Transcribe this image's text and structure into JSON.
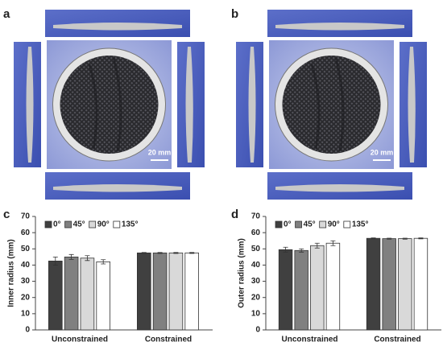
{
  "panels": [
    {
      "label": "a",
      "scale_bar": "20 mm"
    },
    {
      "label": "b",
      "scale_bar": "20 mm"
    }
  ],
  "chart_data": [
    {
      "type": "bar",
      "panel": "c",
      "ylabel": "Inner radius (mm)",
      "categories": [
        "Unconstrained",
        "Constrained"
      ],
      "ylim": [
        0,
        70
      ],
      "yticks": [
        0,
        10,
        20,
        30,
        40,
        50,
        60,
        70
      ],
      "legend": "top-left",
      "series": [
        {
          "name": "0°",
          "color": "#404040",
          "values": [
            42.5,
            47.5
          ],
          "errors": [
            2.5,
            0.3
          ]
        },
        {
          "name": "45°",
          "color": "#808080",
          "values": [
            45,
            47.5
          ],
          "errors": [
            1.5,
            0.3
          ]
        },
        {
          "name": "90°",
          "color": "#d9d9d9",
          "values": [
            44.3,
            47.5
          ],
          "errors": [
            1.5,
            0.3
          ]
        },
        {
          "name": "135°",
          "color": "#ffffff",
          "values": [
            42,
            47.5
          ],
          "errors": [
            1.3,
            0.3
          ]
        }
      ]
    },
    {
      "type": "bar",
      "panel": "d",
      "ylabel": "Outer radius (mm)",
      "categories": [
        "Unconstrained",
        "Constrained"
      ],
      "ylim": [
        0,
        70
      ],
      "yticks": [
        0,
        10,
        20,
        30,
        40,
        50,
        60,
        70
      ],
      "legend": "top-left",
      "series": [
        {
          "name": "0°",
          "color": "#404040",
          "values": [
            49.5,
            56.5
          ],
          "errors": [
            1.5,
            0.3
          ]
        },
        {
          "name": "45°",
          "color": "#808080",
          "values": [
            49,
            56.3
          ],
          "errors": [
            1,
            0.3
          ]
        },
        {
          "name": "90°",
          "color": "#d9d9d9",
          "values": [
            52,
            56.3
          ],
          "errors": [
            1.5,
            0.3
          ]
        },
        {
          "name": "135°",
          "color": "#ffffff",
          "values": [
            53.5,
            56.5
          ],
          "errors": [
            1.5,
            0.3
          ]
        }
      ]
    }
  ]
}
